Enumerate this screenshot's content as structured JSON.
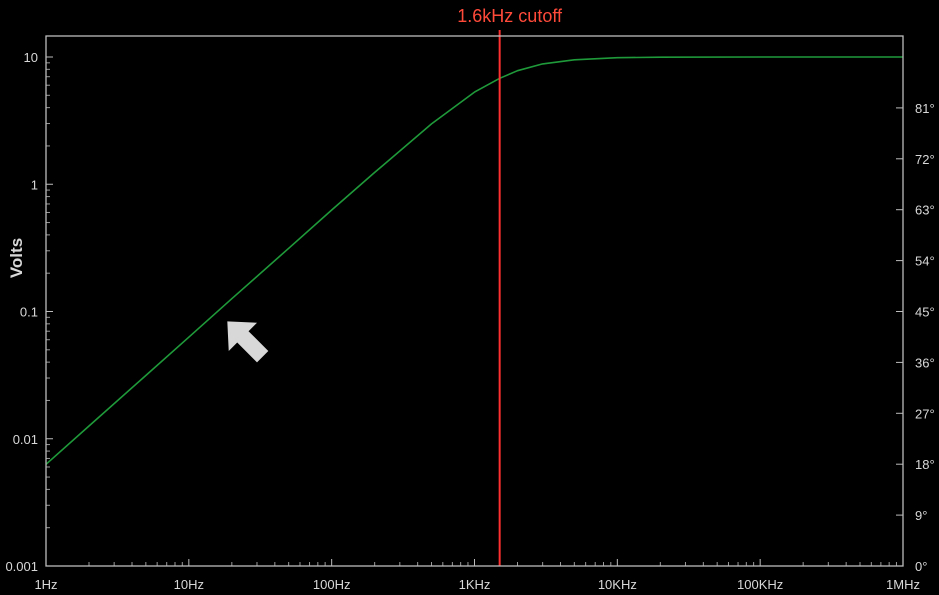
{
  "chart_data": {
    "type": "line",
    "title": "",
    "ylabel": "Volts",
    "xscale": "log",
    "yscale": "log",
    "xlim": [
      1,
      1000000
    ],
    "ylim": [
      0.001,
      10
    ],
    "y2lim": [
      0,
      90
    ],
    "x_ticks": [
      {
        "value": 1,
        "label": "1Hz"
      },
      {
        "value": 10,
        "label": "10Hz"
      },
      {
        "value": 100,
        "label": "100Hz"
      },
      {
        "value": 1000,
        "label": "1KHz"
      },
      {
        "value": 10000,
        "label": "10KHz"
      },
      {
        "value": 100000,
        "label": "100KHz"
      },
      {
        "value": 1000000,
        "label": "1MHz"
      }
    ],
    "y_ticks": [
      {
        "value": 10,
        "label": "10"
      },
      {
        "value": 1,
        "label": "1"
      },
      {
        "value": 0.1,
        "label": "0.1"
      },
      {
        "value": 0.01,
        "label": "0.01"
      },
      {
        "value": 0.001,
        "label": "0.001"
      }
    ],
    "y2_ticks": [
      {
        "value": 81,
        "label": "81°"
      },
      {
        "value": 72,
        "label": "72°"
      },
      {
        "value": 63,
        "label": "63°"
      },
      {
        "value": 54,
        "label": "54°"
      },
      {
        "value": 45,
        "label": "45°"
      },
      {
        "value": 36,
        "label": "36°"
      },
      {
        "value": 27,
        "label": "27°"
      },
      {
        "value": 18,
        "label": "18°"
      },
      {
        "value": 9,
        "label": "9°"
      },
      {
        "value": 0,
        "label": "0°"
      }
    ],
    "series": [
      {
        "color": "#1f9a3a",
        "x": [
          1,
          2,
          5,
          10,
          20,
          50,
          100,
          200,
          500,
          1000,
          1500,
          2000,
          3000,
          5000,
          10000,
          20000,
          100000,
          1000000
        ],
        "y": [
          0.0063,
          0.0126,
          0.0314,
          0.0628,
          0.126,
          0.314,
          0.627,
          1.24,
          2.98,
          5.3,
          6.8,
          7.8,
          8.83,
          9.51,
          9.87,
          9.97,
          10,
          10
        ]
      }
    ],
    "annotations": [
      {
        "type": "vline",
        "x": 1500,
        "label": "1.6kHz cutoff",
        "color": "#ff3030"
      },
      {
        "type": "arrow",
        "x": 25,
        "y": 0.06,
        "color": "#d8d8d8"
      }
    ],
    "grid": false,
    "legend": "none"
  }
}
